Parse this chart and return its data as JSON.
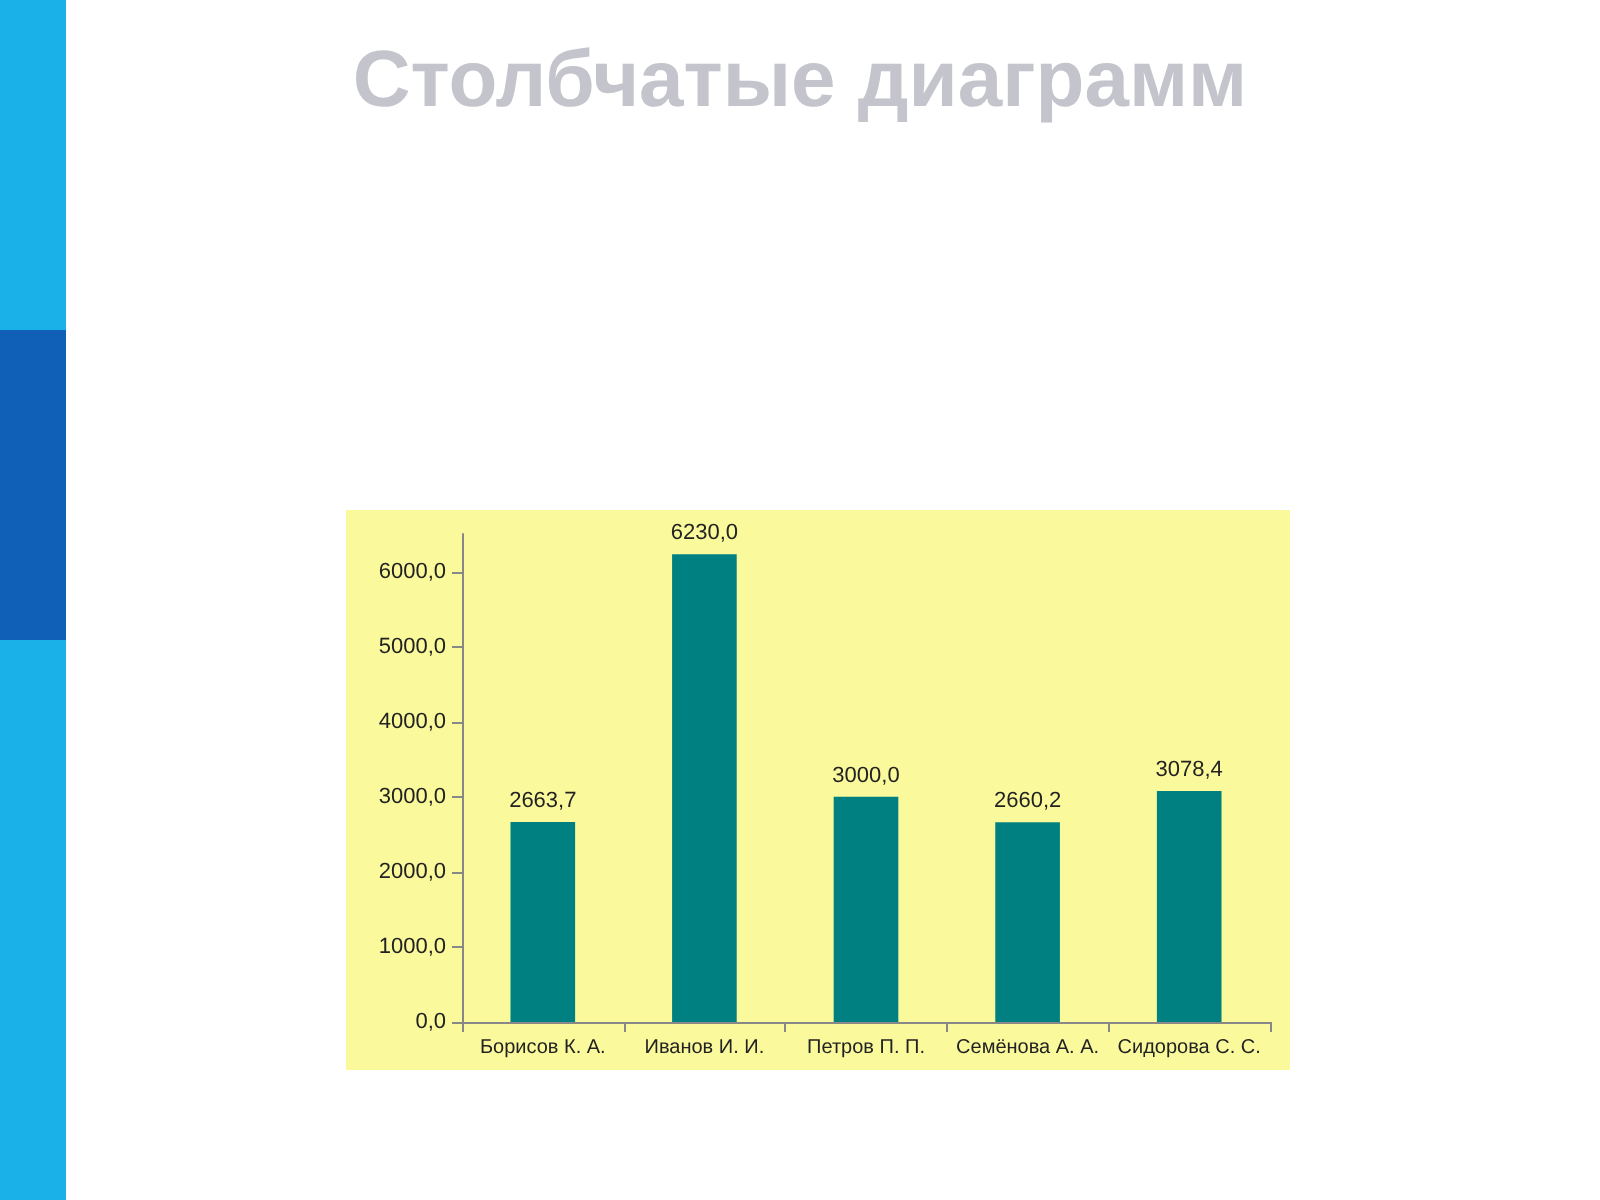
{
  "chart_data": {
    "type": "bar",
    "title": "Столбчатые диаграмм",
    "categories": [
      "Борисов К. А.",
      "Иванов И. И.",
      "Петров П. П.",
      "Семёнова А. А.",
      "Сидорова С. С."
    ],
    "values": [
      2663.7,
      6230.0,
      3000.0,
      2660.2,
      3078.4
    ],
    "value_labels": [
      "2663,7",
      "6230,0",
      "3000,0",
      "2660,2",
      "3078,4"
    ],
    "color": "#008080",
    "ylim": [
      0,
      6500
    ],
    "yticks": [
      {
        "value": 0,
        "label": "0,0"
      },
      {
        "value": 1000,
        "label": "1000,0"
      },
      {
        "value": 2000,
        "label": "2000,0"
      },
      {
        "value": 3000,
        "label": "3000,0"
      },
      {
        "value": 4000,
        "label": "4000,0"
      },
      {
        "value": 5000,
        "label": "5000,0"
      },
      {
        "value": 6000,
        "label": "6000,0"
      }
    ],
    "grid": false
  }
}
